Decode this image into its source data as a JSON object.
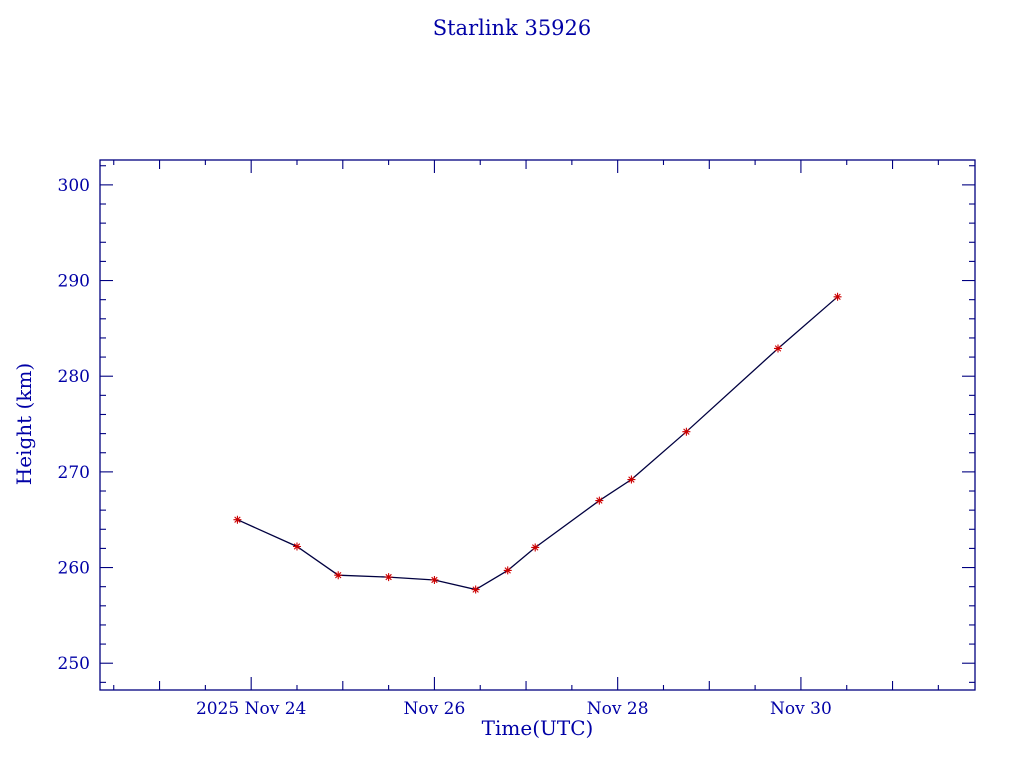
{
  "page": {
    "background": "#ffffff"
  },
  "chart_data": {
    "type": "line",
    "title": "Starlink 35926",
    "xlabel": "Time(UTC)",
    "ylabel": "Height (km)",
    "x_axis_note": "x values are decimal day-of-month, November 2025 UTC",
    "xlim": [
      22.35,
      31.9
    ],
    "ylim": [
      247.2,
      302.6
    ],
    "x_ticks": [
      {
        "value": 24,
        "label": "2025 Nov 24"
      },
      {
        "value": 26,
        "label": "Nov 26"
      },
      {
        "value": 28,
        "label": "Nov 28"
      },
      {
        "value": 30,
        "label": "Nov 30"
      }
    ],
    "x_minor_step": 0.5,
    "y_ticks": [
      {
        "value": 250,
        "label": "250"
      },
      {
        "value": 260,
        "label": "260"
      },
      {
        "value": 270,
        "label": "270"
      },
      {
        "value": 280,
        "label": "280"
      },
      {
        "value": 290,
        "label": "290"
      },
      {
        "value": 300,
        "label": "300"
      }
    ],
    "y_minor_step": 2,
    "grid": false,
    "legend": null,
    "axis_color": "#000080",
    "text_color": "#0000a6",
    "series": [
      {
        "name": "height",
        "x": [
          23.85,
          24.5,
          24.95,
          25.5,
          26.0,
          26.45,
          26.8,
          27.1,
          27.8,
          28.15,
          28.75,
          29.75,
          30.4
        ],
        "y": [
          265.0,
          262.2,
          259.2,
          259.0,
          258.7,
          257.7,
          259.7,
          262.1,
          267.0,
          269.2,
          274.2,
          282.9,
          288.3
        ],
        "line_color": "#000040",
        "marker": "asterisk",
        "marker_color": "#cc0000"
      }
    ]
  }
}
